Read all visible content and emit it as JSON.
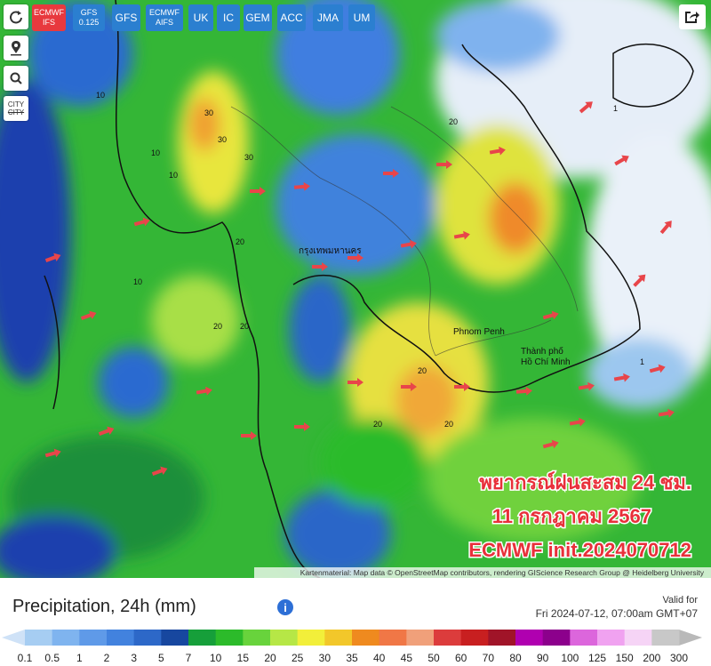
{
  "toolbar": {
    "models": [
      {
        "lines": [
          "ECMWF",
          "IFS"
        ],
        "active": true
      },
      {
        "lines": [
          "GFS",
          "0.125"
        ],
        "active": false
      },
      {
        "lines": [
          "GFS"
        ],
        "active": false
      },
      {
        "lines": [
          "ECMWF",
          "AIFS"
        ],
        "active": false
      },
      {
        "lines": [
          "UK"
        ],
        "active": false
      },
      {
        "lines": [
          "IC"
        ],
        "active": false
      },
      {
        "lines": [
          "GEM"
        ],
        "active": false
      },
      {
        "lines": [
          "ACC"
        ],
        "active": false
      },
      {
        "lines": [
          "JMA"
        ],
        "active": false
      },
      {
        "lines": [
          "UM"
        ],
        "active": false
      }
    ]
  },
  "sidebar": {
    "city": [
      "CITY",
      "CITY"
    ]
  },
  "map": {
    "places": [
      "กรุงเทพมหานคร",
      "Phnom Penh",
      "Thành phố",
      "Hồ Chí Minh"
    ],
    "contour_labels": [
      "30",
      "30",
      "30",
      "20",
      "20",
      "10",
      "10",
      "20",
      "20",
      "20",
      "10",
      "1",
      "1",
      "20",
      "10",
      "20"
    ],
    "overlay": [
      "พยากรณ์ฝนสะสม 24 ชม.",
      "11 กรกฎาคม 2567",
      "ECMWF init.2024070712"
    ],
    "attribution": "Kartenmaterial: Map data © OpenStreetMap contributors, rendering GIScience Research Group @ Heidelberg University"
  },
  "legend": {
    "title": "Precipitation, 24h (mm)",
    "valid_label": "Valid for",
    "valid_time": "Fri 2024-07-12, 07:00am GMT+07",
    "ticks": [
      0.1,
      0.5,
      1,
      2,
      3,
      5,
      7,
      10,
      15,
      20,
      25,
      30,
      35,
      40,
      45,
      50,
      60,
      70,
      80,
      90,
      100,
      125,
      150,
      200,
      300
    ],
    "colors": [
      "#a6cdf2",
      "#7fb4ef",
      "#5f9ae8",
      "#4282de",
      "#2d68c8",
      "#17479f",
      "#169f3a",
      "#2cbb2a",
      "#68d33c",
      "#b6e746",
      "#f2ef3a",
      "#f2c72a",
      "#ef8a1f",
      "#f07746",
      "#f0a07a",
      "#dc3c3c",
      "#c81f20",
      "#a01428",
      "#b000b0",
      "#8c008c",
      "#dc66dc",
      "#f0a2f0",
      "#f6d4f6",
      "#c8c8c8"
    ],
    "under_color": "#cfe2f7",
    "over_color": "#b9b9b9"
  }
}
